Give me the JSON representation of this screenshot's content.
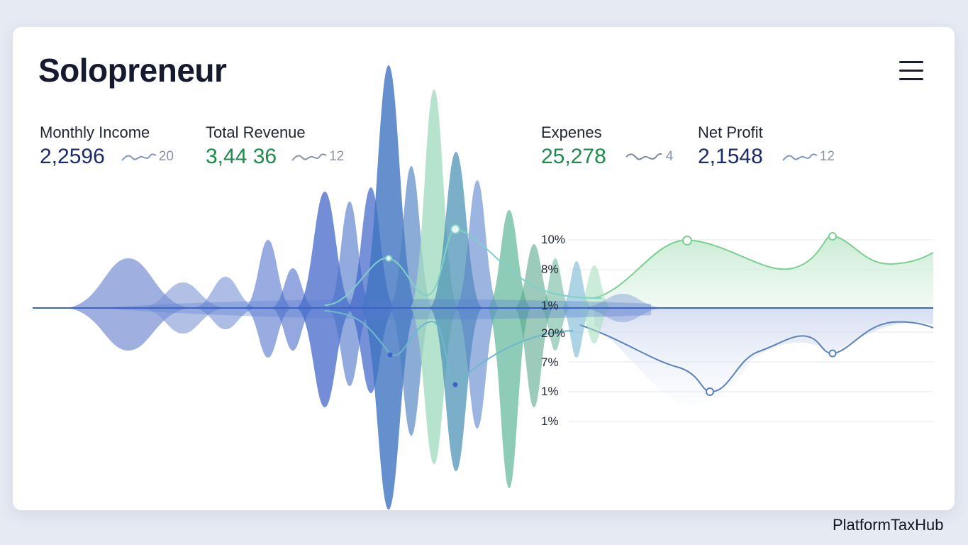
{
  "app": {
    "title": "Solopreneur"
  },
  "menu": {
    "icon": "hamburger-menu-icon"
  },
  "stats": [
    {
      "label": "Monthly Income",
      "value": "2,2596",
      "trend_value": "20",
      "value_color": "#1b2a6b",
      "trend_icon": "sparkline-icon"
    },
    {
      "label": "Total Revenue",
      "value": "3,44 36",
      "trend_value": "12",
      "value_color": "#1f8a4c",
      "trend_icon": "sparkline-icon"
    },
    {
      "label": "Expenes",
      "value": "25,278",
      "trend_value": "4",
      "value_color": "#1f8a4c",
      "trend_icon": "sparkline-icon"
    },
    {
      "label": "Net Profit",
      "value": "2,1548",
      "trend_value": "12",
      "value_color": "#1b2a6b",
      "trend_icon": "sparkline-icon"
    }
  ],
  "chart": {
    "upper_ticks": [
      "10%",
      "8%",
      "1%"
    ],
    "lower_ticks": [
      "20%",
      "7%",
      "1%",
      "1%"
    ],
    "colors": {
      "blue": "#3d62c8",
      "green": "#8fd4a6",
      "teal": "#56a7b8",
      "line_green": "#7ccf92",
      "line_blue": "#5b82bd"
    }
  },
  "watermark": "PlatformTaxHub"
}
